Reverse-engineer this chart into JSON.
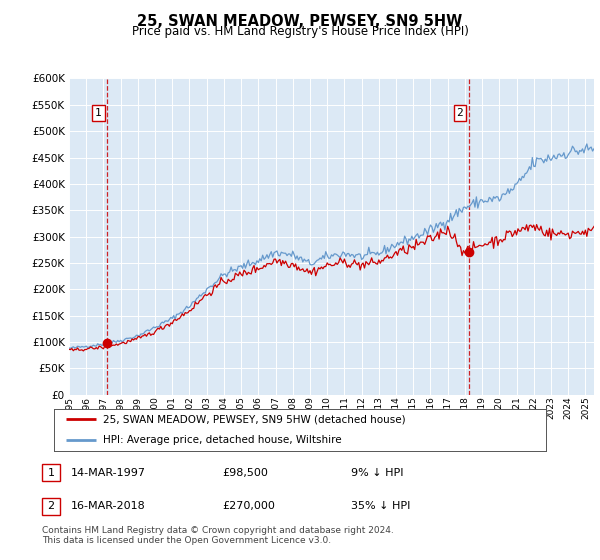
{
  "title": "25, SWAN MEADOW, PEWSEY, SN9 5HW",
  "subtitle": "Price paid vs. HM Land Registry's House Price Index (HPI)",
  "plot_bg_color": "#dce9f5",
  "hpi_color": "#6699cc",
  "price_color": "#cc0000",
  "ylim": [
    0,
    600000
  ],
  "yticks": [
    0,
    50000,
    100000,
    150000,
    200000,
    250000,
    300000,
    350000,
    400000,
    450000,
    500000,
    550000,
    600000
  ],
  "sale1_x": 1997.21,
  "sale1_price": 98500,
  "sale1_label": "1",
  "sale2_x": 2018.21,
  "sale2_price": 270000,
  "sale2_label": "2",
  "legend_line1": "25, SWAN MEADOW, PEWSEY, SN9 5HW (detached house)",
  "legend_line2": "HPI: Average price, detached house, Wiltshire",
  "note1_num": "1",
  "note1_date": "14-MAR-1997",
  "note1_price": "£98,500",
  "note1_hpi": "9% ↓ HPI",
  "note2_num": "2",
  "note2_date": "16-MAR-2018",
  "note2_price": "£270,000",
  "note2_hpi": "35% ↓ HPI",
  "footer": "Contains HM Land Registry data © Crown copyright and database right 2024.\nThis data is licensed under the Open Government Licence v3.0.",
  "xlim_left": 1995.0,
  "xlim_right": 2025.5
}
